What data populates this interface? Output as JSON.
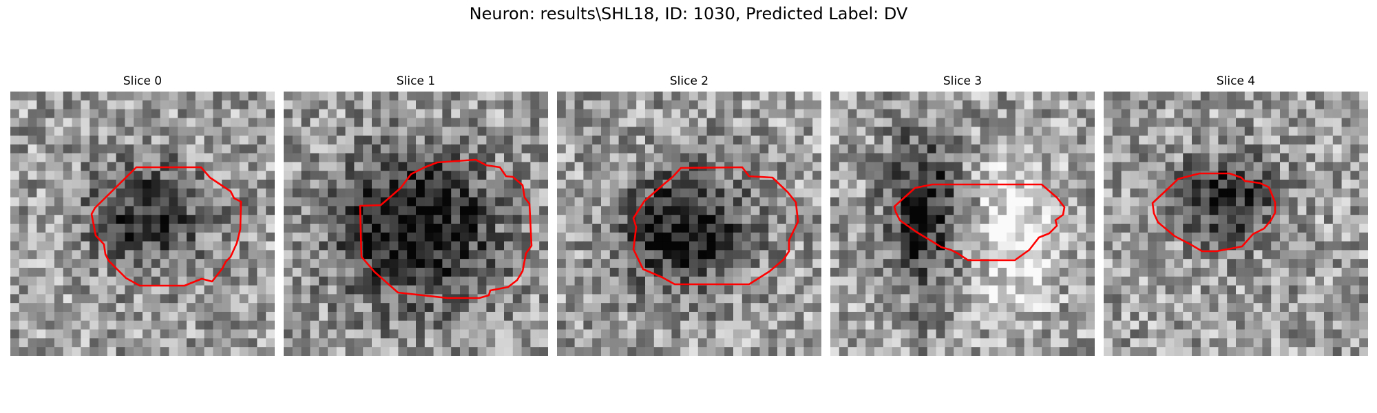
{
  "figure": {
    "title": "Neuron: results\\SHL18, ID: 1030, Predicted Label: DV"
  },
  "image": {
    "grid": 30,
    "contour_color": "#ff0000",
    "colormap": "gray"
  },
  "slices": [
    {
      "label": "Slice 0",
      "seed": 11,
      "blob": [
        0.52,
        0.47,
        0.22,
        0.2
      ],
      "strength": 0.45,
      "bright": null
    },
    {
      "label": "Slice 1",
      "seed": 23,
      "blob": [
        0.5,
        0.52,
        0.3,
        0.28
      ],
      "strength": 0.6,
      "bright": null
    },
    {
      "label": "Slice 2",
      "seed": 37,
      "blob": [
        0.48,
        0.52,
        0.24,
        0.22
      ],
      "strength": 0.55,
      "bright": null
    },
    {
      "label": "Slice 3",
      "seed": 41,
      "blob": [
        0.35,
        0.45,
        0.14,
        0.3
      ],
      "strength": 0.5,
      "bright": [
        0.7,
        0.55,
        0.14,
        0.3
      ]
    },
    {
      "label": "Slice 4",
      "seed": 53,
      "blob": [
        0.47,
        0.4,
        0.18,
        0.16
      ],
      "strength": 0.5,
      "bright": null
    }
  ]
}
